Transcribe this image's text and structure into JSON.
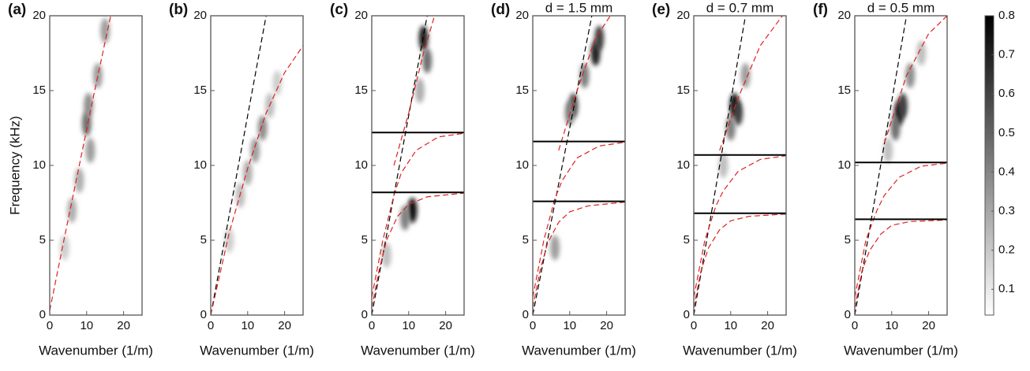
{
  "chart_data": [
    {
      "type": "heatmap",
      "label": "(a)",
      "xlabel": "Wavenumber (1/m)",
      "ylabel": "Frequency (kHz)",
      "xlim": [
        0,
        25
      ],
      "xticks": [
        0,
        10,
        20
      ],
      "ylim": [
        0,
        20
      ],
      "yticks": [
        0,
        5,
        10,
        15,
        20
      ],
      "lines": [
        {
          "color": "#e02020",
          "x": [
            0,
            4,
            8,
            12,
            16.5
          ],
          "y": [
            0.3,
            5.2,
            10,
            14.8,
            20
          ]
        }
      ],
      "hlines": [],
      "spots": {
        "x": [
          10,
          10.5,
          8,
          6,
          4,
          13,
          15,
          11
        ],
        "y": [
          12.8,
          14,
          9,
          7,
          4.5,
          16,
          19,
          11
        ],
        "values": [
          0.45,
          0.35,
          0.25,
          0.25,
          0.15,
          0.3,
          0.3,
          0.3
        ]
      }
    },
    {
      "type": "heatmap",
      "label": "(b)",
      "xlabel": "Wavenumber (1/m)",
      "xlim": [
        0,
        25
      ],
      "xticks": [
        0,
        10,
        20
      ],
      "ylim": [
        0,
        20
      ],
      "yticks": [
        0,
        5,
        10,
        15,
        20
      ],
      "lines": [
        {
          "color": "#000000",
          "x": [
            0,
            15
          ],
          "y": [
            0,
            20
          ]
        },
        {
          "color": "#e02020",
          "x": [
            0,
            5,
            10,
            15,
            20,
            25
          ],
          "y": [
            0,
            5.5,
            9.8,
            13.5,
            16.2,
            18
          ]
        }
      ],
      "hlines": [],
      "spots": {
        "x": [
          14,
          12,
          10,
          8,
          5,
          16,
          18
        ],
        "y": [
          12.5,
          11,
          9.5,
          8,
          5,
          14,
          15.5
        ],
        "values": [
          0.35,
          0.3,
          0.25,
          0.2,
          0.15,
          0.2,
          0.15
        ]
      }
    },
    {
      "type": "heatmap",
      "label": "(c)",
      "xlabel": "Wavenumber (1/m)",
      "xlim": [
        0,
        25
      ],
      "xticks": [
        0,
        10,
        20
      ],
      "ylim": [
        0,
        20
      ],
      "yticks": [
        0,
        5,
        10,
        15,
        20
      ],
      "lines": [
        {
          "color": "#000000",
          "x": [
            0,
            15
          ],
          "y": [
            0,
            20
          ]
        },
        {
          "color": "#e02020",
          "x": [
            0,
            2,
            4,
            7,
            10,
            15,
            25
          ],
          "y": [
            0.5,
            3,
            5,
            6.6,
            7.4,
            7.9,
            8.15
          ]
        },
        {
          "color": "#e02020",
          "x": [
            0,
            3,
            6,
            8,
            12,
            18,
            25
          ],
          "y": [
            1.2,
            5,
            8,
            9.5,
            11,
            11.9,
            12.15
          ]
        },
        {
          "color": "#e02020",
          "x": [
            6,
            10,
            14,
            17
          ],
          "y": [
            10,
            13.5,
            17.5,
            20
          ]
        }
      ],
      "hlines": [
        12.2,
        8.2
      ],
      "spots": {
        "x": [
          14,
          15,
          11,
          9,
          4,
          13
        ],
        "y": [
          18.5,
          17,
          7,
          6.5,
          4,
          15
        ],
        "values": [
          0.7,
          0.45,
          0.75,
          0.4,
          0.2,
          0.25
        ]
      }
    },
    {
      "type": "heatmap",
      "label": "(d)",
      "title": "d = 1.5 mm",
      "xlabel": "Wavenumber (1/m)",
      "xlim": [
        0,
        25
      ],
      "xticks": [
        0,
        10,
        20
      ],
      "ylim": [
        0,
        20
      ],
      "yticks": [
        0,
        5,
        10,
        15,
        20
      ],
      "lines": [
        {
          "color": "#000000",
          "x": [
            0,
            16
          ],
          "y": [
            0,
            20
          ]
        },
        {
          "color": "#e02020",
          "x": [
            0,
            2,
            4,
            7,
            10,
            15,
            25
          ],
          "y": [
            0.5,
            3,
            4.8,
            6.2,
            6.9,
            7.3,
            7.55
          ]
        },
        {
          "color": "#e02020",
          "x": [
            0,
            3,
            6,
            8,
            12,
            18,
            25
          ],
          "y": [
            1.2,
            5,
            7.8,
            9,
            10.5,
            11.3,
            11.55
          ]
        },
        {
          "color": "#e02020",
          "x": [
            7,
            12,
            17,
            21
          ],
          "y": [
            11,
            15,
            18.5,
            20
          ]
        }
      ],
      "hlines": [
        11.6,
        7.6
      ],
      "spots": {
        "x": [
          17,
          18,
          11,
          10,
          6,
          14
        ],
        "y": [
          17.5,
          18.5,
          14,
          13.5,
          4.5,
          16
        ],
        "values": [
          0.7,
          0.6,
          0.55,
          0.4,
          0.3,
          0.4
        ]
      }
    },
    {
      "type": "heatmap",
      "label": "(e)",
      "title": "d = 0.7 mm",
      "xlabel": "Wavenumber (1/m)",
      "xlim": [
        0,
        25
      ],
      "xticks": [
        0,
        10,
        20
      ],
      "ylim": [
        0,
        20
      ],
      "yticks": [
        0,
        5,
        10,
        15,
        20
      ],
      "lines": [
        {
          "color": "#000000",
          "x": [
            0,
            14
          ],
          "y": [
            0,
            20
          ]
        },
        {
          "color": "#e02020",
          "x": [
            0,
            2,
            4,
            7,
            10,
            15,
            25
          ],
          "y": [
            0.5,
            3,
            4.5,
            5.7,
            6.3,
            6.6,
            6.75
          ]
        },
        {
          "color": "#e02020",
          "x": [
            0,
            3,
            6,
            8,
            12,
            18,
            25
          ],
          "y": [
            1.2,
            5,
            7.3,
            8.3,
            9.6,
            10.4,
            10.65
          ]
        },
        {
          "color": "#e02020",
          "x": [
            7,
            12,
            18,
            24
          ],
          "y": [
            11,
            14.5,
            18,
            20
          ]
        }
      ],
      "hlines": [
        10.7,
        6.8
      ],
      "spots": {
        "x": [
          11,
          12,
          10,
          14,
          8
        ],
        "y": [
          14,
          13.5,
          12.5,
          16,
          10
        ],
        "values": [
          0.75,
          0.6,
          0.4,
          0.3,
          0.2
        ]
      }
    },
    {
      "type": "heatmap",
      "label": "(f)",
      "title": "d = 0.5 mm",
      "xlabel": "Wavenumber (1/m)",
      "xlim": [
        0,
        25
      ],
      "xticks": [
        0,
        10,
        20
      ],
      "ylim": [
        0,
        20
      ],
      "yticks": [
        0,
        5,
        10,
        15,
        20
      ],
      "lines": [
        {
          "color": "#000000",
          "x": [
            0,
            14
          ],
          "y": [
            0,
            20
          ]
        },
        {
          "color": "#e02020",
          "x": [
            0,
            2,
            4,
            7,
            10,
            15,
            25
          ],
          "y": [
            0.5,
            3,
            4.3,
            5.4,
            6,
            6.25,
            6.35
          ]
        },
        {
          "color": "#e02020",
          "x": [
            0,
            3,
            6,
            8,
            12,
            18,
            25
          ],
          "y": [
            1.2,
            5,
            7,
            8,
            9.2,
            9.95,
            10.15
          ]
        },
        {
          "color": "#e02020",
          "x": [
            8,
            14,
            20,
            25
          ],
          "y": [
            11.5,
            16,
            18.8,
            20
          ]
        }
      ],
      "hlines": [
        10.2,
        6.4
      ],
      "spots": {
        "x": [
          12,
          13,
          11,
          15,
          9,
          18
        ],
        "y": [
          13.5,
          14,
          12.5,
          16,
          11,
          17.5
        ],
        "values": [
          0.75,
          0.6,
          0.45,
          0.35,
          0.2,
          0.2
        ]
      },
      "clim": [
        0.034,
        0.8
      ],
      "cticks": [
        0.1,
        0.2,
        0.3,
        0.4,
        0.5,
        0.6,
        0.7,
        0.8
      ]
    }
  ]
}
